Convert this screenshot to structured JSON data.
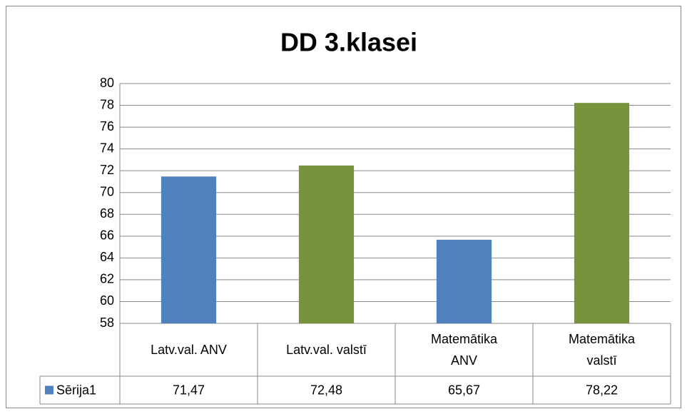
{
  "chart_data": {
    "type": "bar",
    "title": "DD 3.klasei",
    "categories": [
      "Latv.val. ANV",
      "Latv.val. valstī",
      "Matemātika\nANV",
      "Matemātika\nvalstī"
    ],
    "series": [
      {
        "name": "Sērija1",
        "color": "#4f81bd",
        "point_colors": [
          "#4f81bd",
          "#77933c",
          "#4f81bd",
          "#77933c"
        ],
        "values": [
          71.47,
          72.48,
          65.67,
          78.22
        ],
        "value_labels": [
          "71,47",
          "72,48",
          "65,67",
          "78,22"
        ]
      }
    ],
    "ylim": [
      58,
      80
    ],
    "yticks": [
      58,
      60,
      62,
      64,
      66,
      68,
      70,
      72,
      74,
      76,
      78,
      80
    ],
    "grid": true
  }
}
